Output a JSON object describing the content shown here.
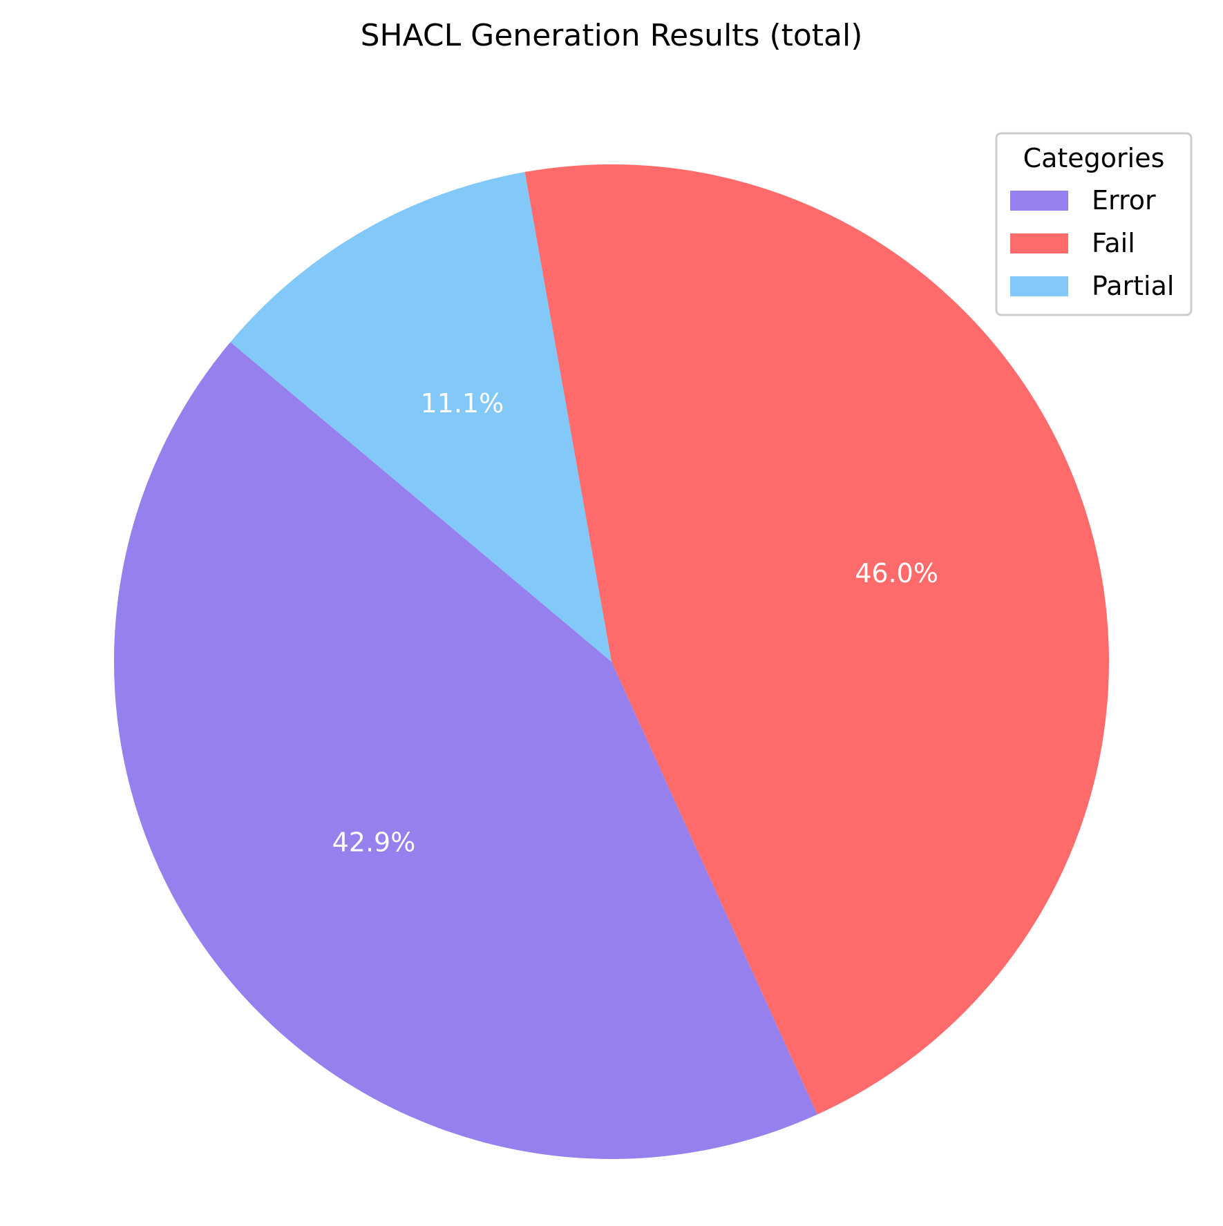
{
  "chart_data": {
    "type": "pie",
    "title": "SHACL Generation Results (total)",
    "categories": [
      "Error",
      "Fail",
      "Partial"
    ],
    "values": [
      42.9,
      46.0,
      11.1
    ],
    "value_labels": [
      "42.9%",
      "46.0%",
      "11.1%"
    ],
    "colors": [
      "#9580ED",
      "#FF6B6B",
      "#82C8F8"
    ],
    "legend": {
      "title": "Categories",
      "placement": "top-right",
      "entries": [
        "Error",
        "Fail",
        "Partial"
      ]
    }
  }
}
